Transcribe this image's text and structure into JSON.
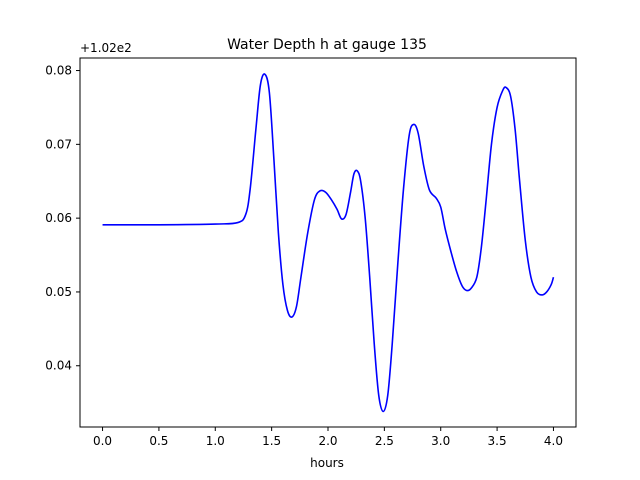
{
  "chart_data": {
    "type": "line",
    "title": "Water Depth h at gauge 135",
    "xlabel": "hours",
    "ylabel": "",
    "y_offset_label": "+1.02e2",
    "xlim": [
      -0.2,
      4.2
    ],
    "ylim": [
      0.0317,
      0.0817
    ],
    "grid": false,
    "x_ticks": [
      {
        "value": 0.0,
        "label": "0.0"
      },
      {
        "value": 0.5,
        "label": "0.5"
      },
      {
        "value": 1.0,
        "label": "1.0"
      },
      {
        "value": 1.5,
        "label": "1.5"
      },
      {
        "value": 2.0,
        "label": "2.0"
      },
      {
        "value": 2.5,
        "label": "2.5"
      },
      {
        "value": 3.0,
        "label": "3.0"
      },
      {
        "value": 3.5,
        "label": "3.5"
      },
      {
        "value": 4.0,
        "label": "4.0"
      }
    ],
    "y_ticks": [
      {
        "value": 0.04,
        "label": "0.04"
      },
      {
        "value": 0.05,
        "label": "0.05"
      },
      {
        "value": 0.06,
        "label": "0.06"
      },
      {
        "value": 0.07,
        "label": "0.07"
      },
      {
        "value": 0.08,
        "label": "0.08"
      }
    ],
    "series": [
      {
        "color": "#0000ff",
        "points": [
          [
            0.0,
            0.0591
          ],
          [
            0.5,
            0.0591
          ],
          [
            1.0,
            0.0592
          ],
          [
            1.2,
            0.0594
          ],
          [
            1.27,
            0.0605
          ],
          [
            1.31,
            0.064
          ],
          [
            1.36,
            0.072
          ],
          [
            1.4,
            0.078
          ],
          [
            1.44,
            0.0795
          ],
          [
            1.48,
            0.077
          ],
          [
            1.52,
            0.068
          ],
          [
            1.56,
            0.058
          ],
          [
            1.6,
            0.051
          ],
          [
            1.64,
            0.0475
          ],
          [
            1.68,
            0.0466
          ],
          [
            1.72,
            0.048
          ],
          [
            1.76,
            0.052
          ],
          [
            1.82,
            0.058
          ],
          [
            1.88,
            0.0625
          ],
          [
            1.93,
            0.0637
          ],
          [
            1.98,
            0.0635
          ],
          [
            2.03,
            0.0625
          ],
          [
            2.08,
            0.0612
          ],
          [
            2.12,
            0.0599
          ],
          [
            2.16,
            0.0605
          ],
          [
            2.2,
            0.0635
          ],
          [
            2.23,
            0.066
          ],
          [
            2.26,
            0.0664
          ],
          [
            2.29,
            0.065
          ],
          [
            2.33,
            0.06
          ],
          [
            2.37,
            0.052
          ],
          [
            2.41,
            0.043
          ],
          [
            2.45,
            0.036
          ],
          [
            2.49,
            0.0338
          ],
          [
            2.53,
            0.036
          ],
          [
            2.57,
            0.043
          ],
          [
            2.62,
            0.054
          ],
          [
            2.67,
            0.064
          ],
          [
            2.72,
            0.0712
          ],
          [
            2.76,
            0.0727
          ],
          [
            2.8,
            0.0715
          ],
          [
            2.85,
            0.067
          ],
          [
            2.9,
            0.0638
          ],
          [
            2.96,
            0.0627
          ],
          [
            3.0,
            0.0615
          ],
          [
            3.04,
            0.0585
          ],
          [
            3.09,
            0.0555
          ],
          [
            3.14,
            0.0528
          ],
          [
            3.19,
            0.0508
          ],
          [
            3.23,
            0.0502
          ],
          [
            3.27,
            0.0505
          ],
          [
            3.32,
            0.052
          ],
          [
            3.36,
            0.056
          ],
          [
            3.4,
            0.062
          ],
          [
            3.45,
            0.07
          ],
          [
            3.5,
            0.075
          ],
          [
            3.55,
            0.0773
          ],
          [
            3.58,
            0.0777
          ],
          [
            3.62,
            0.0765
          ],
          [
            3.66,
            0.072
          ],
          [
            3.7,
            0.065
          ],
          [
            3.75,
            0.057
          ],
          [
            3.8,
            0.052
          ],
          [
            3.85,
            0.05
          ],
          [
            3.9,
            0.0496
          ],
          [
            3.94,
            0.05
          ],
          [
            3.98,
            0.051
          ],
          [
            4.0,
            0.052
          ]
        ]
      }
    ]
  }
}
